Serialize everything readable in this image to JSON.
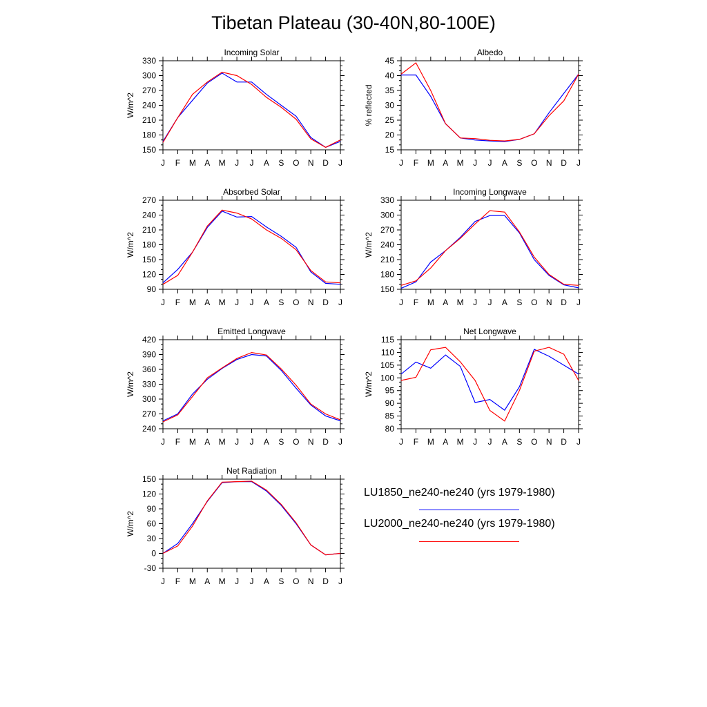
{
  "title": "Tibetan Plateau (30-40N,80-100E)",
  "months": [
    "J",
    "F",
    "M",
    "A",
    "M",
    "J",
    "J",
    "A",
    "S",
    "O",
    "N",
    "D",
    "J"
  ],
  "colors": {
    "series_1": "#0000ff",
    "series_2": "#ff0000"
  },
  "legend": {
    "series_1": "LU1850_ne240-ne240 (yrs 1979-1980)",
    "series_2": "LU2000_ne240-ne240 (yrs 1979-1980)"
  },
  "chart_data": [
    {
      "type": "line",
      "title": "Incoming Solar",
      "ylabel": "W/m^2",
      "ylim": [
        150,
        330
      ],
      "yticks": [
        150,
        180,
        210,
        240,
        270,
        300,
        330
      ],
      "categories": [
        "J",
        "F",
        "M",
        "A",
        "M",
        "J",
        "J",
        "A",
        "S",
        "O",
        "N",
        "D",
        "J"
      ],
      "series": [
        {
          "name": "LU1850_ne240-ne240 (yrs 1979-1980)",
          "values": [
            167,
            215,
            250,
            285,
            305,
            287,
            287,
            262,
            240,
            218,
            175,
            155,
            167
          ]
        },
        {
          "name": "LU2000_ne240-ne240 (yrs 1979-1980)",
          "values": [
            165,
            215,
            262,
            287,
            307,
            300,
            282,
            256,
            236,
            212,
            172,
            155,
            170
          ]
        }
      ]
    },
    {
      "type": "line",
      "title": "Albedo",
      "ylabel": "% reflected",
      "ylim": [
        15,
        45
      ],
      "yticks": [
        15,
        20,
        25,
        30,
        35,
        40,
        45
      ],
      "categories": [
        "J",
        "F",
        "M",
        "A",
        "M",
        "J",
        "J",
        "A",
        "S",
        "O",
        "N",
        "D",
        "J"
      ],
      "series": [
        {
          "name": "LU1850_ne240-ne240 (yrs 1979-1980)",
          "values": [
            40.2,
            40.2,
            33,
            23.8,
            19,
            18.3,
            18,
            17.8,
            18.5,
            20.4,
            27.5,
            34,
            40.5
          ]
        },
        {
          "name": "LU2000_ne240-ne240 (yrs 1979-1980)",
          "values": [
            40.5,
            44.3,
            35,
            23.8,
            19,
            18.8,
            18.2,
            18,
            18.5,
            20.4,
            26.5,
            31.5,
            40.5
          ]
        }
      ]
    },
    {
      "type": "line",
      "title": "Absorbed Solar",
      "ylabel": "W/m^2",
      "ylim": [
        90,
        270
      ],
      "yticks": [
        90,
        120,
        150,
        180,
        210,
        240,
        270
      ],
      "categories": [
        "J",
        "F",
        "M",
        "A",
        "M",
        "J",
        "J",
        "A",
        "S",
        "O",
        "N",
        "D",
        "J"
      ],
      "series": [
        {
          "name": "LU1850_ne240-ne240 (yrs 1979-1980)",
          "values": [
            103,
            130,
            165,
            215,
            248,
            236,
            237,
            216,
            197,
            175,
            125,
            102,
            100
          ]
        },
        {
          "name": "LU2000_ne240-ne240 (yrs 1979-1980)",
          "values": [
            100,
            118,
            165,
            218,
            250,
            244,
            232,
            210,
            193,
            170,
            128,
            105,
            103
          ]
        }
      ]
    },
    {
      "type": "line",
      "title": "Incoming Longwave",
      "ylabel": "W/m^2",
      "ylim": [
        150,
        330
      ],
      "yticks": [
        150,
        180,
        210,
        240,
        270,
        300,
        330
      ],
      "categories": [
        "J",
        "F",
        "M",
        "A",
        "M",
        "J",
        "J",
        "A",
        "S",
        "O",
        "N",
        "D",
        "J"
      ],
      "series": [
        {
          "name": "LU1850_ne240-ne240 (yrs 1979-1980)",
          "values": [
            152,
            165,
            205,
            228,
            255,
            287,
            299,
            299,
            264,
            210,
            178,
            159,
            153
          ]
        },
        {
          "name": "LU2000_ne240-ne240 (yrs 1979-1980)",
          "values": [
            158,
            167,
            193,
            228,
            253,
            282,
            309,
            306,
            266,
            215,
            180,
            160,
            158
          ]
        }
      ]
    },
    {
      "type": "line",
      "title": "Emitted Longwave",
      "ylabel": "W/m^2",
      "ylim": [
        240,
        420
      ],
      "yticks": [
        240,
        270,
        300,
        330,
        360,
        390,
        420
      ],
      "categories": [
        "J",
        "F",
        "M",
        "A",
        "M",
        "J",
        "J",
        "A",
        "S",
        "O",
        "N",
        "D",
        "J"
      ],
      "series": [
        {
          "name": "LU1850_ne240-ne240 (yrs 1979-1980)",
          "values": [
            256,
            270,
            310,
            340,
            362,
            380,
            390,
            387,
            358,
            322,
            288,
            266,
            256
          ]
        },
        {
          "name": "LU2000_ne240-ne240 (yrs 1979-1980)",
          "values": [
            254,
            268,
            305,
            343,
            363,
            382,
            394,
            389,
            361,
            328,
            290,
            270,
            258
          ]
        }
      ]
    },
    {
      "type": "line",
      "title": "Net Longwave",
      "ylabel": "W/m^2",
      "ylim": [
        80,
        115
      ],
      "yticks": [
        80,
        85,
        90,
        95,
        100,
        105,
        110,
        115
      ],
      "categories": [
        "J",
        "F",
        "M",
        "A",
        "M",
        "J",
        "J",
        "A",
        "S",
        "O",
        "N",
        "D",
        "J"
      ],
      "series": [
        {
          "name": "LU1850_ne240-ne240 (yrs 1979-1980)",
          "values": [
            101.5,
            106.2,
            103.8,
            109,
            104.5,
            90.3,
            91.5,
            87.3,
            96.5,
            111.2,
            108.5,
            105,
            101.5
          ]
        },
        {
          "name": "LU2000_ne240-ne240 (yrs 1979-1980)",
          "values": [
            99,
            100.2,
            111,
            112,
            106.3,
            99,
            87.2,
            83,
            95,
            110.5,
            112,
            109.3,
            99
          ]
        }
      ]
    },
    {
      "type": "line",
      "title": "Net Radiation",
      "ylabel": "W/m^2",
      "ylim": [
        -30,
        150
      ],
      "yticks": [
        -30,
        0,
        30,
        60,
        90,
        120,
        150
      ],
      "categories": [
        "J",
        "F",
        "M",
        "A",
        "M",
        "J",
        "J",
        "A",
        "S",
        "O",
        "N",
        "D",
        "J"
      ],
      "series": [
        {
          "name": "LU1850_ne240-ne240 (yrs 1979-1980)",
          "values": [
            0,
            20,
            60,
            105,
            143,
            145,
            145,
            126,
            97,
            60,
            17,
            -3,
            0
          ]
        },
        {
          "name": "LU2000_ne240-ne240 (yrs 1979-1980)",
          "values": [
            0,
            15,
            55,
            106,
            144,
            145,
            146,
            128,
            99,
            62,
            17,
            -3,
            0
          ]
        }
      ]
    }
  ]
}
